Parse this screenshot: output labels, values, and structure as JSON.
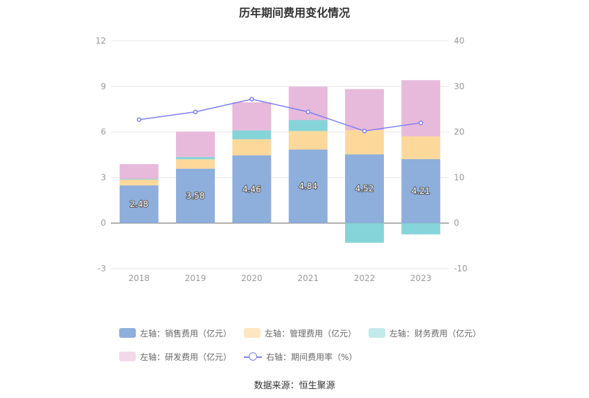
{
  "title": "历年期间费用变化情况",
  "source": "数据来源：恒生聚源",
  "chart_data": {
    "type": "bar",
    "stacked": true,
    "categories": [
      "2018",
      "2019",
      "2020",
      "2021",
      "2022",
      "2023"
    ],
    "left_axis": {
      "ticks": [
        "12",
        "9",
        "6",
        "3",
        "0",
        "-3"
      ],
      "ylim": [
        -3,
        12
      ]
    },
    "right_axis": {
      "ticks": [
        "40",
        "30",
        "20",
        "10",
        "0",
        "-10"
      ],
      "ylim": [
        -10,
        40
      ]
    },
    "series": [
      {
        "name": "左轴：销售费用（亿元）",
        "axis": "left",
        "type": "bar",
        "color": "#8eaedb",
        "values": [
          2.48,
          3.58,
          4.46,
          4.84,
          4.52,
          4.21
        ],
        "labels": [
          "2.48",
          "3.58",
          "4.46",
          "4.84",
          "4.52",
          "4.21"
        ]
      },
      {
        "name": "左轴：管理费用（亿元）",
        "axis": "left",
        "type": "bar",
        "color": "#fdd89b",
        "values": [
          0.38,
          0.62,
          1.06,
          1.22,
          1.6,
          1.5
        ]
      },
      {
        "name": "左轴：财务费用（亿元）",
        "axis": "left",
        "type": "bar",
        "color": "#85d4d9",
        "values": [
          0.05,
          0.15,
          0.58,
          0.72,
          -1.3,
          -0.75
        ]
      },
      {
        "name": "左轴：研发费用（亿元）",
        "axis": "left",
        "type": "bar",
        "color": "#e7b9da",
        "values": [
          0.97,
          1.67,
          1.85,
          2.2,
          2.7,
          3.7
        ]
      },
      {
        "name": "右轴：期间费用率（%）",
        "axis": "right",
        "type": "line",
        "color": "#7b7ff2",
        "values": [
          22.7,
          24.4,
          27.2,
          24.4,
          20.2,
          22.0
        ]
      }
    ],
    "grid": true,
    "legend_position": "bottom"
  }
}
